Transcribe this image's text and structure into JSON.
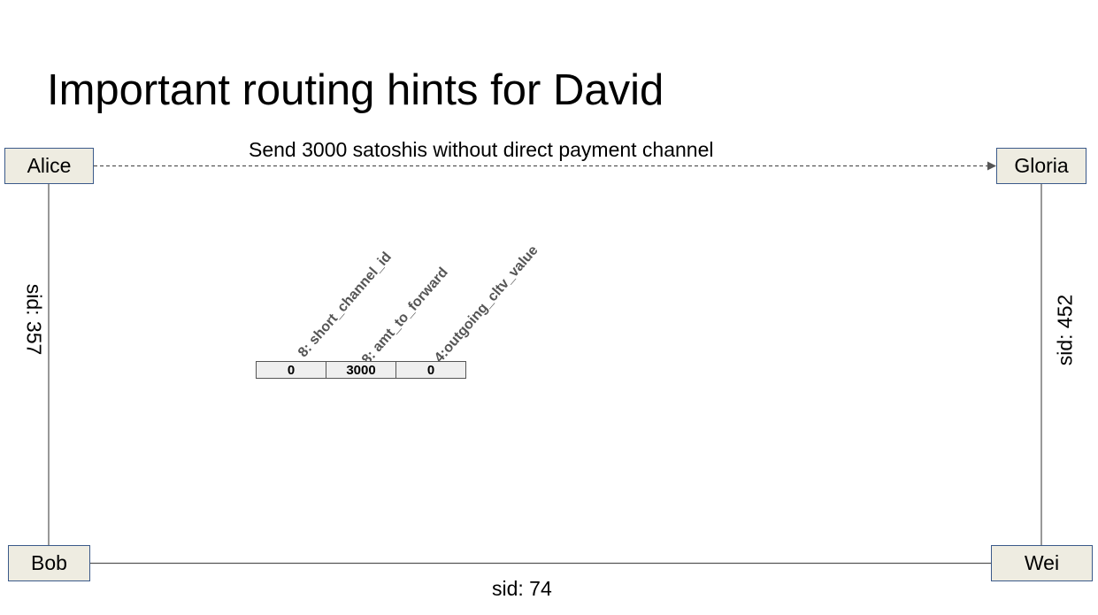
{
  "title": "Important routing hints for David",
  "nodes": {
    "alice": "Alice",
    "gloria": "Gloria",
    "bob": "Bob",
    "wei": "Wei"
  },
  "edges": {
    "send_label": "Send 3000 satoshis without direct payment channel",
    "alice_bob": "sid:  357",
    "gloria_wei": "sid: 452",
    "bob_wei": "sid: 74"
  },
  "routing_hint": {
    "fields": [
      {
        "label": "8: short_channel_id",
        "value": "0"
      },
      {
        "label": "8: amt_to_forward",
        "value": "3000"
      },
      {
        "label": "4:outgoing_cltv_value",
        "value": "0"
      }
    ]
  },
  "colors": {
    "node_fill": "#eeece1",
    "node_border": "#3b5a8a",
    "edge": "#555555",
    "cell_fill": "#efefef"
  }
}
